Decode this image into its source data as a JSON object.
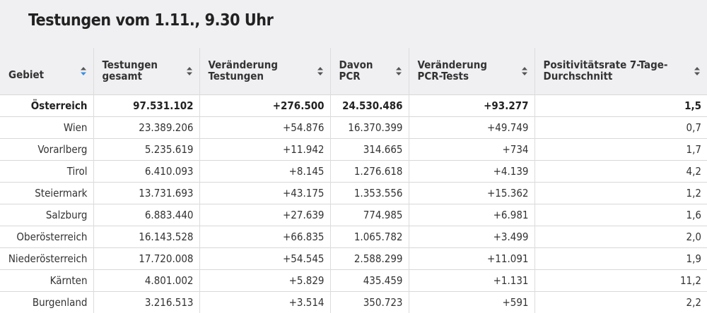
{
  "title": "Testungen vom 1.11., 9.30 Uhr",
  "colors": {
    "header_bg": "#f0f0f3",
    "sort_active": "#3b8fe0",
    "sort_inactive": "#555555"
  },
  "chart_data": {
    "type": "table",
    "columns": [
      {
        "label": "Gebiet",
        "sort": "active"
      },
      {
        "label": "Testungen gesamt",
        "sort": "inactive"
      },
      {
        "label": "Veränderung Testungen",
        "sort": "inactive"
      },
      {
        "label": "Davon PCR",
        "sort": "inactive"
      },
      {
        "label": "Veränderung PCR-Tests",
        "sort": "inactive"
      },
      {
        "label": "Positivitätsrate 7-Tage-Durchschnitt",
        "sort": "inactive"
      }
    ],
    "rows": [
      [
        "Österreich",
        "97.531.102",
        "+276.500",
        "24.530.486",
        "+93.277",
        "1,5"
      ],
      [
        "Wien",
        "23.389.206",
        "+54.876",
        "16.370.399",
        "+49.749",
        "0,7"
      ],
      [
        "Vorarlberg",
        "5.235.619",
        "+11.942",
        "314.665",
        "+734",
        "1,7"
      ],
      [
        "Tirol",
        "6.410.093",
        "+8.145",
        "1.276.618",
        "+4.139",
        "4,2"
      ],
      [
        "Steiermark",
        "13.731.693",
        "+43.175",
        "1.353.556",
        "+15.362",
        "1,2"
      ],
      [
        "Salzburg",
        "6.883.440",
        "+27.639",
        "774.985",
        "+6.981",
        "1,6"
      ],
      [
        "Oberösterreich",
        "16.143.528",
        "+66.835",
        "1.065.782",
        "+3.499",
        "2,0"
      ],
      [
        "Niederösterreich",
        "17.720.008",
        "+54.545",
        "2.588.299",
        "+11.091",
        "1,9"
      ],
      [
        "Kärnten",
        "4.801.002",
        "+5.829",
        "435.459",
        "+1.131",
        "11,2"
      ],
      [
        "Burgenland",
        "3.216.513",
        "+3.514",
        "350.723",
        "+591",
        "2,2"
      ]
    ]
  }
}
